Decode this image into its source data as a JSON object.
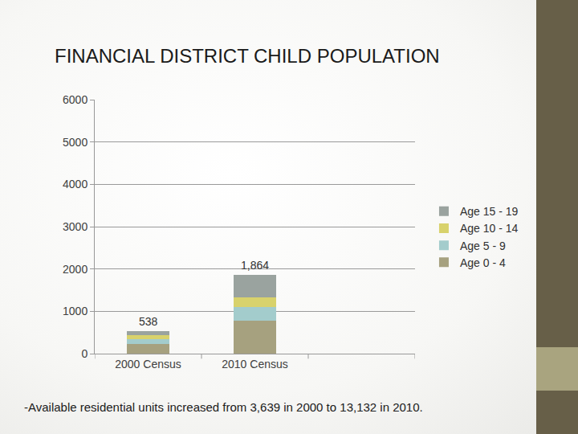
{
  "chart_data": {
    "type": "bar",
    "title": "FINANCIAL DISTRICT CHILD POPULATION",
    "categories": [
      "2000 Census",
      "2010 Census",
      null
    ],
    "series": [
      {
        "name": "Age 0 - 4",
        "color": "#a6a17f",
        "values": [
          226,
          774,
          null
        ]
      },
      {
        "name": "Age 5 - 9",
        "color": "#a3cccc",
        "values": [
          114,
          320,
          null
        ]
      },
      {
        "name": "Age 10 - 14",
        "color": "#d8d26c",
        "values": [
          94,
          226,
          null
        ]
      },
      {
        "name": "Age 15 - 19",
        "color": "#9aa39f",
        "values": [
          104,
          544,
          null
        ]
      }
    ],
    "annotations": [
      {
        "category": "2000 Census",
        "text": "538"
      },
      {
        "category": "2010 Census",
        "text": "1,864"
      }
    ],
    "footnote": "-Available residential units increased from 3,639 in 2000 to 13,132 in 2010.",
    "ylim": [
      0,
      6000
    ],
    "yticks": [
      0,
      1000,
      2000,
      3000,
      4000,
      5000,
      6000
    ],
    "grid": true,
    "stacked": true,
    "legend": "right"
  }
}
